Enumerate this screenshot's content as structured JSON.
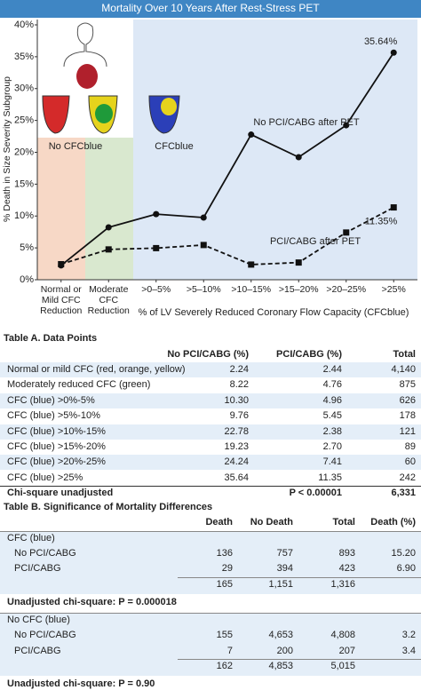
{
  "chart_data": {
    "type": "line",
    "title": "Mortality Over 10 Years After Rest-Stress PET",
    "y_label": "% Death in Size Severity Subgroup",
    "x_label": "% of LV Severely Reduced Coronary Flow Capacity (CFCblue)",
    "annotations": [
      "No CFCblue",
      "CFCblue"
    ],
    "categories": [
      "Normal or Mild CFC Reduction",
      "Moderate CFC Reduction",
      ">0–5%",
      ">5–10%",
      ">10–15%",
      ">15–20%",
      ">20–25%",
      ">25%"
    ],
    "series": [
      {
        "name": "No PCI/CABG after PET",
        "color": "#111111",
        "line": "solid",
        "marker": "circle",
        "values": [
          2.24,
          8.22,
          10.3,
          9.76,
          22.78,
          19.23,
          24.24,
          35.64
        ],
        "value_labels": [
          null,
          null,
          null,
          null,
          null,
          null,
          null,
          "35.64%"
        ]
      },
      {
        "name": "PCI/CABG after PET",
        "color": "#111111",
        "line": "dashed",
        "marker": "square",
        "values": [
          2.44,
          4.76,
          4.96,
          5.45,
          2.38,
          2.7,
          7.41,
          11.35
        ],
        "value_labels": [
          null,
          null,
          null,
          null,
          null,
          null,
          null,
          "11.35%"
        ]
      }
    ],
    "ylim": [
      0,
      40
    ],
    "yticks": [
      {
        "value": 0,
        "label": "0%"
      },
      {
        "value": 5,
        "label": "5%"
      },
      {
        "value": 10,
        "label": "10%"
      },
      {
        "value": 15,
        "label": "15%"
      },
      {
        "value": 20,
        "label": "20%"
      },
      {
        "value": 25,
        "label": "25%"
      },
      {
        "value": 30,
        "label": "30%"
      },
      {
        "value": 35,
        "label": "35%"
      },
      {
        "value": 40,
        "label": "40%"
      }
    ]
  },
  "table_a": {
    "title": "Table A. Data Points",
    "header": [
      "No PCI/CABG (%)",
      "PCI/CABG (%)",
      "Total"
    ],
    "rows": [
      [
        "Normal or mild CFC (red, orange, yellow)",
        "2.24",
        "2.44",
        "4,140"
      ],
      [
        "Moderately reduced CFC (green)",
        "8.22",
        "4.76",
        "875"
      ],
      [
        "CFC (blue) >0%-5%",
        "10.30",
        "4.96",
        "626"
      ],
      [
        "CFC (blue) >5%-10%",
        "9.76",
        "5.45",
        "178"
      ],
      [
        "CFC (blue) >10%-15%",
        "22.78",
        "2.38",
        "121"
      ],
      [
        "CFC (blue) >15%-20%",
        "19.23",
        "2.70",
        "89"
      ],
      [
        "CFC (blue) >20%-25%",
        "24.24",
        "7.41",
        "60"
      ],
      [
        "CFC (blue) >25%",
        "35.64",
        "11.35",
        "242"
      ],
      [
        "Chi-square unadjusted",
        null,
        "P < 0.00001",
        "6,331"
      ]
    ]
  },
  "table_b": {
    "title": "Table B. Significance of Mortality Differences",
    "header": [
      "Death",
      "No Death",
      "Total",
      "Death (%)"
    ],
    "sections": [
      {
        "label": "CFC (blue)",
        "rows": [
          [
            "No PCI/CABG",
            "136",
            "757",
            "893",
            "15.20"
          ],
          [
            "PCI/CABG",
            "29",
            "394",
            "423",
            "6.90"
          ],
          [
            null,
            "165",
            "1,151",
            "1,316",
            null
          ]
        ],
        "chi_square": "Unadjusted chi-square: P = 0.000018"
      },
      {
        "label": "No CFC (blue)",
        "rows": [
          [
            "No PCI/CABG",
            "155",
            "4,653",
            "4,808",
            "3.2"
          ],
          [
            "PCI/CABG",
            "7",
            "200",
            "207",
            "3.4"
          ],
          [
            null,
            "162",
            "4,853",
            "5,015",
            null
          ]
        ],
        "chi_square": "Unadjusted chi-square: P = 0.90"
      }
    ]
  }
}
